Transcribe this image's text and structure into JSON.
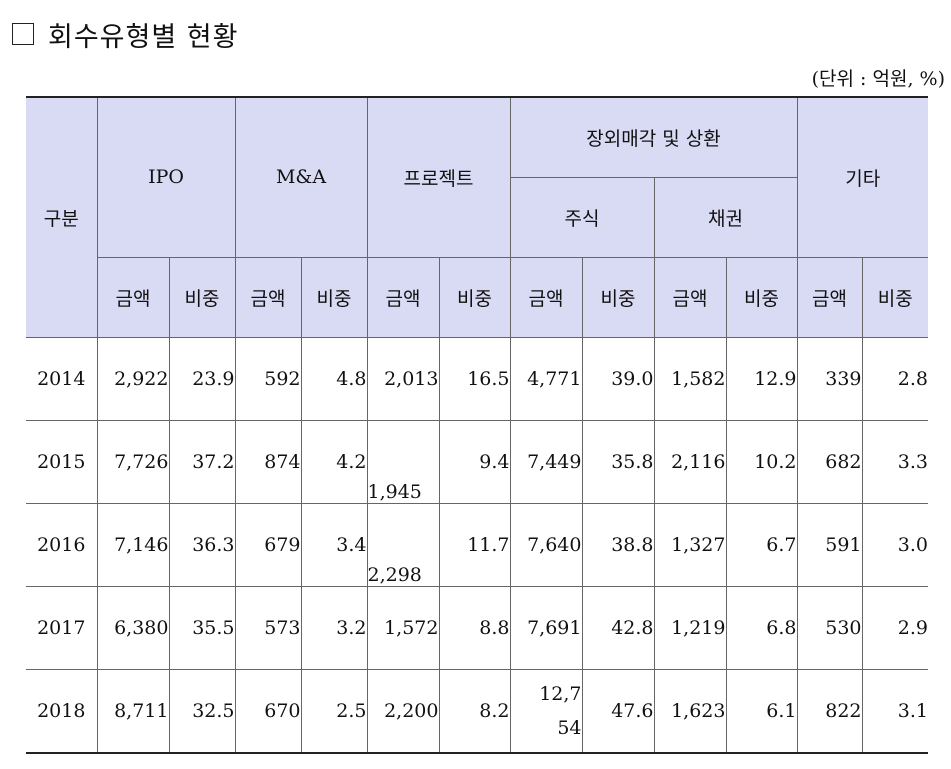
{
  "title": "회수유형별 현황",
  "unit": "(단위 : 억원, %)",
  "headers": {
    "category": "구분",
    "ipo": "IPO",
    "ma": "M&A",
    "project": "프로젝트",
    "offmarket": "장외매각 및 상환",
    "stock": "주식",
    "bond": "채권",
    "other": "기타",
    "amount": "금액",
    "share": "비중"
  },
  "rows": [
    {
      "year": "2014",
      "ipo_amt": "2,922",
      "ipo_pct": "23.9",
      "ma_amt": "592",
      "ma_pct": "4.8",
      "proj_amt": "2,013",
      "proj_pct": "16.5",
      "stock_amt": "4,771",
      "stock_pct": "39.0",
      "bond_amt": "1,582",
      "bond_pct": "12.9",
      "other_amt": "339",
      "other_pct": "2.8"
    },
    {
      "year": "2015",
      "ipo_amt": "7,726",
      "ipo_pct": "37.2",
      "ma_amt": "874",
      "ma_pct": "4.2",
      "proj_amt": "1,945",
      "proj_pct": "9.4",
      "stock_amt": "7,449",
      "stock_pct": "35.8",
      "bond_amt": "2,116",
      "bond_pct": "10.2",
      "other_amt": "682",
      "other_pct": "3.3"
    },
    {
      "year": "2016",
      "ipo_amt": "7,146",
      "ipo_pct": "36.3",
      "ma_amt": "679",
      "ma_pct": "3.4",
      "proj_amt": "2,298",
      "proj_pct": "11.7",
      "stock_amt": "7,640",
      "stock_pct": "38.8",
      "bond_amt": "1,327",
      "bond_pct": "6.7",
      "other_amt": "591",
      "other_pct": "3.0"
    },
    {
      "year": "2017",
      "ipo_amt": "6,380",
      "ipo_pct": "35.5",
      "ma_amt": "573",
      "ma_pct": "3.2",
      "proj_amt": "1,572",
      "proj_pct": "8.8",
      "stock_amt": "7,691",
      "stock_pct": "42.8",
      "bond_amt": "1,219",
      "bond_pct": "6.8",
      "other_amt": "530",
      "other_pct": "2.9"
    },
    {
      "year": "2018",
      "ipo_amt": "8,711",
      "ipo_pct": "32.5",
      "ma_amt": "670",
      "ma_pct": "2.5",
      "proj_amt": "2,200",
      "proj_pct": "8.2",
      "stock_amt": "12,754",
      "stock_pct": "47.6",
      "bond_amt": "1,623",
      "bond_pct": "6.1",
      "other_amt": "822",
      "other_pct": "3.1"
    }
  ]
}
